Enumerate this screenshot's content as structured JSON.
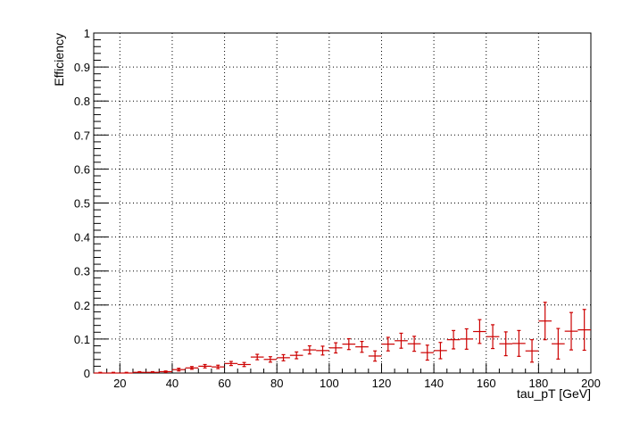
{
  "chart_data": {
    "type": "scatter",
    "title": "",
    "xlabel": "tau_pT [GeV]",
    "ylabel": "Efficiency",
    "xlim": [
      10,
      200
    ],
    "ylim": [
      0,
      1
    ],
    "x_ticks": [
      20,
      40,
      60,
      80,
      100,
      120,
      140,
      160,
      180,
      200
    ],
    "y_ticks": [
      0,
      0.1,
      0.2,
      0.3,
      0.4,
      0.5,
      0.6,
      0.7,
      0.8,
      0.9,
      1
    ],
    "y_tick_labels": [
      "0",
      "0.1",
      "0.2",
      "0.3",
      "0.4",
      "0.5",
      "0.6",
      "0.7",
      "0.8",
      "0.9",
      "1"
    ],
    "grid": true,
    "marker_color": "#cc0000",
    "bin_width": 5,
    "series": [
      {
        "x": [
          12.5,
          17.5,
          22.5,
          27.5,
          32.5,
          37.5,
          42.5,
          47.5,
          52.5,
          57.5,
          62.5,
          67.5,
          72.5,
          77.5,
          82.5,
          87.5,
          92.5,
          97.5,
          102.5,
          107.5,
          112.5,
          117.5,
          122.5,
          127.5,
          132.5,
          137.5,
          142.5,
          147.5,
          152.5,
          157.5,
          162.5,
          167.5,
          172.5,
          177.5,
          182.5,
          187.5,
          192.5,
          197.5
        ],
        "y": [
          0.0,
          0.0,
          0.0,
          0.002,
          0.002,
          0.004,
          0.01,
          0.015,
          0.02,
          0.018,
          0.028,
          0.025,
          0.047,
          0.04,
          0.045,
          0.052,
          0.068,
          0.066,
          0.074,
          0.085,
          0.077,
          0.05,
          0.085,
          0.095,
          0.086,
          0.06,
          0.066,
          0.098,
          0.1,
          0.122,
          0.107,
          0.086,
          0.087,
          0.065,
          0.153,
          0.086,
          0.123,
          0.127
        ],
        "err": [
          0.002,
          0.002,
          0.002,
          0.002,
          0.002,
          0.002,
          0.004,
          0.004,
          0.005,
          0.005,
          0.006,
          0.006,
          0.008,
          0.008,
          0.009,
          0.01,
          0.012,
          0.013,
          0.015,
          0.016,
          0.016,
          0.015,
          0.02,
          0.022,
          0.022,
          0.022,
          0.024,
          0.027,
          0.03,
          0.035,
          0.035,
          0.035,
          0.038,
          0.033,
          0.055,
          0.045,
          0.055,
          0.06
        ]
      }
    ]
  }
}
